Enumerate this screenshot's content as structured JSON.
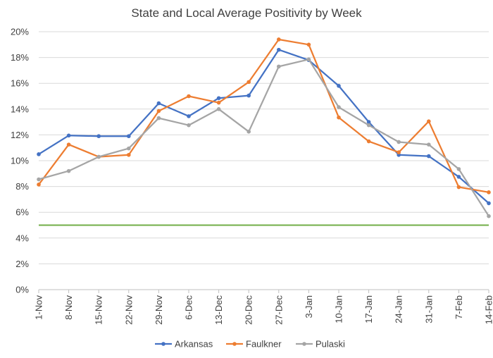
{
  "chart_data": {
    "type": "line",
    "title": "State and Local Average Positivity by Week",
    "xlabel": "",
    "ylabel": "",
    "ylim": [
      0,
      20
    ],
    "ytick_step": 2,
    "ytick_suffix": "%",
    "categories": [
      "1-Nov",
      "8-Nov",
      "15-Nov",
      "22-Nov",
      "29-Nov",
      "6-Dec",
      "13-Dec",
      "20-Dec",
      "27-Dec",
      "3-Jan",
      "10-Jan",
      "17-Jan",
      "24-Jan",
      "31-Jan",
      "7-Feb",
      "14-Feb"
    ],
    "series": [
      {
        "name": "Arkansas",
        "color": "#4472C4",
        "values": [
          10.5,
          11.95,
          11.9,
          11.9,
          14.45,
          13.45,
          14.85,
          15.05,
          18.6,
          17.8,
          15.8,
          13.0,
          10.45,
          10.35,
          8.75,
          6.7
        ]
      },
      {
        "name": "Faulkner",
        "color": "#ED7D31",
        "values": [
          8.15,
          11.25,
          10.3,
          10.45,
          13.85,
          15.0,
          14.5,
          16.1,
          19.4,
          19.0,
          13.35,
          11.5,
          10.65,
          13.05,
          7.95,
          7.55
        ]
      },
      {
        "name": "Pulaski",
        "color": "#A5A5A5",
        "values": [
          8.55,
          9.2,
          10.3,
          10.95,
          13.3,
          12.75,
          14.0,
          12.25,
          17.3,
          17.85,
          14.15,
          12.75,
          11.45,
          11.25,
          9.35,
          5.7
        ]
      }
    ],
    "reference_line": {
      "value": 5,
      "color": "#70AD47"
    },
    "legend_position": "bottom"
  }
}
